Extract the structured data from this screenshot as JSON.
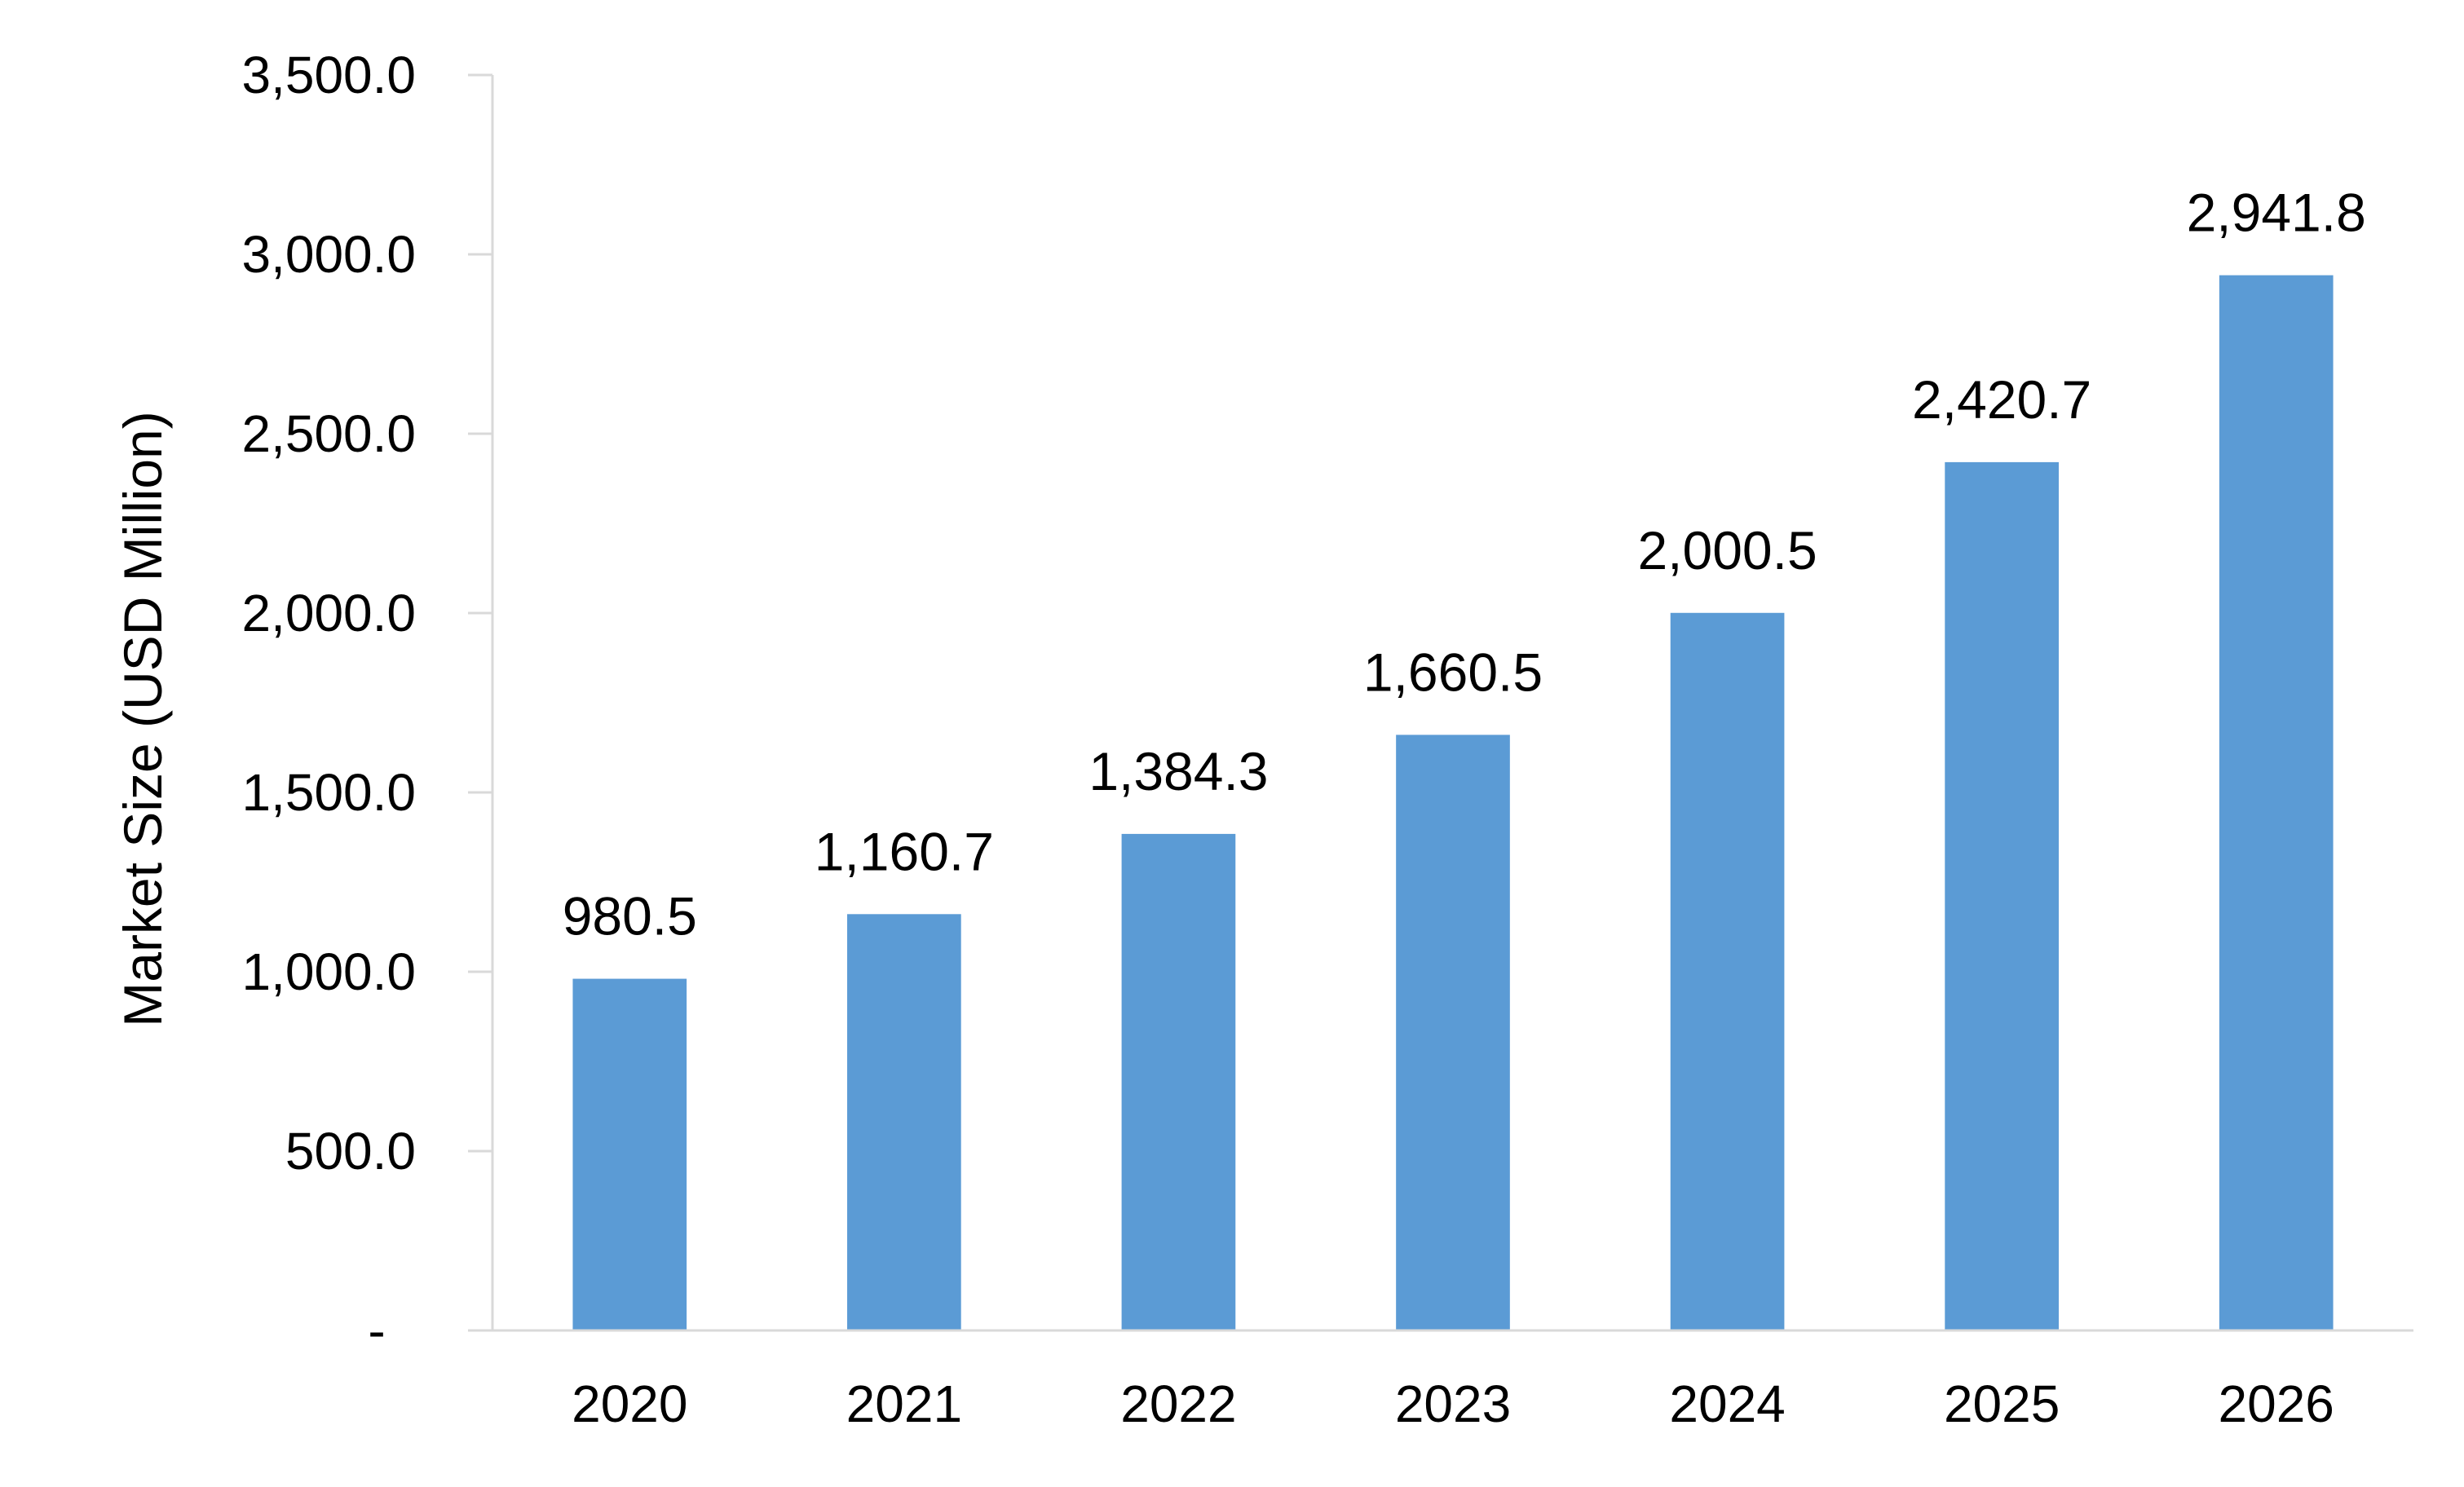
{
  "chart_data": {
    "type": "bar",
    "categories": [
      "2020",
      "2021",
      "2022",
      "2023",
      "2024",
      "2025",
      "2026"
    ],
    "values": [
      980.5,
      1160.7,
      1384.3,
      1660.5,
      2000.5,
      2420.7,
      2941.8
    ],
    "value_labels": [
      "980.5",
      "1,160.7",
      "1,384.3",
      "1,660.5",
      "2,000.5",
      "2,420.7",
      "2,941.8"
    ],
    "ylabel": "Market Size (USD Million)",
    "xlabel": "",
    "ylim": [
      0,
      3500
    ],
    "y_ticks": [
      0,
      500,
      1000,
      1500,
      2000,
      2500,
      3000,
      3500
    ],
    "y_tick_labels": [
      "-",
      "500.0",
      "1,000.0",
      "1,500.0",
      "2,000.0",
      "2,500.0",
      "3,000.0",
      "3,500.0"
    ],
    "grid": false,
    "legend": "none",
    "bar_color": "#5B9BD5",
    "axis_color": "#D9D9D9"
  }
}
